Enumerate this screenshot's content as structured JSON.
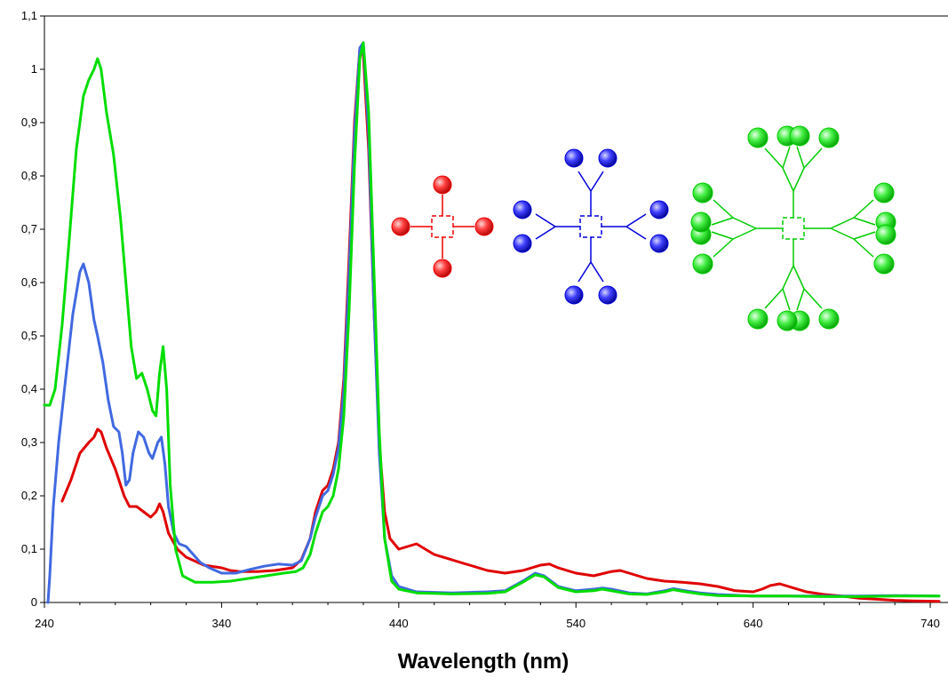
{
  "chart_data": {
    "type": "line",
    "title": "",
    "xlabel": "Wavelength (nm)",
    "ylabel": "",
    "xlim": [
      240,
      750
    ],
    "ylim": [
      0,
      1.1
    ],
    "x_ticks": [
      "240",
      "340",
      "440",
      "540",
      "640",
      "740"
    ],
    "y_ticks": [
      "0",
      "0,1",
      "0,2",
      "0,3",
      "0,4",
      "0,5",
      "0,6",
      "0,7",
      "0,8",
      "0,9",
      "1",
      "1,1"
    ],
    "grid": false,
    "legend": "none",
    "series": [
      {
        "color": "#e00000",
        "points": [
          [
            250,
            0.19
          ],
          [
            255,
            0.23
          ],
          [
            260,
            0.28
          ],
          [
            265,
            0.3
          ],
          [
            268,
            0.31
          ],
          [
            270,
            0.325
          ],
          [
            272,
            0.32
          ],
          [
            275,
            0.29
          ],
          [
            280,
            0.25
          ],
          [
            285,
            0.2
          ],
          [
            288,
            0.18
          ],
          [
            292,
            0.18
          ],
          [
            296,
            0.17
          ],
          [
            300,
            0.16
          ],
          [
            303,
            0.17
          ],
          [
            305,
            0.185
          ],
          [
            307,
            0.17
          ],
          [
            310,
            0.13
          ],
          [
            315,
            0.1
          ],
          [
            320,
            0.085
          ],
          [
            330,
            0.07
          ],
          [
            340,
            0.065
          ],
          [
            345,
            0.06
          ],
          [
            350,
            0.058
          ],
          [
            360,
            0.058
          ],
          [
            370,
            0.06
          ],
          [
            380,
            0.065
          ],
          [
            385,
            0.08
          ],
          [
            390,
            0.12
          ],
          [
            393,
            0.17
          ],
          [
            397,
            0.21
          ],
          [
            400,
            0.22
          ],
          [
            403,
            0.25
          ],
          [
            406,
            0.3
          ],
          [
            409,
            0.42
          ],
          [
            412,
            0.65
          ],
          [
            415,
            0.9
          ],
          [
            418,
            1.04
          ],
          [
            420,
            1.03
          ],
          [
            423,
            0.85
          ],
          [
            426,
            0.55
          ],
          [
            429,
            0.3
          ],
          [
            432,
            0.17
          ],
          [
            435,
            0.12
          ],
          [
            440,
            0.1
          ],
          [
            445,
            0.105
          ],
          [
            450,
            0.11
          ],
          [
            455,
            0.1
          ],
          [
            460,
            0.09
          ],
          [
            470,
            0.08
          ],
          [
            480,
            0.07
          ],
          [
            490,
            0.06
          ],
          [
            500,
            0.055
          ],
          [
            510,
            0.06
          ],
          [
            520,
            0.07
          ],
          [
            525,
            0.072
          ],
          [
            530,
            0.065
          ],
          [
            540,
            0.055
          ],
          [
            550,
            0.05
          ],
          [
            560,
            0.058
          ],
          [
            565,
            0.06
          ],
          [
            570,
            0.055
          ],
          [
            580,
            0.045
          ],
          [
            590,
            0.04
          ],
          [
            600,
            0.038
          ],
          [
            610,
            0.035
          ],
          [
            620,
            0.03
          ],
          [
            630,
            0.022
          ],
          [
            640,
            0.02
          ],
          [
            645,
            0.025
          ],
          [
            650,
            0.032
          ],
          [
            655,
            0.035
          ],
          [
            660,
            0.03
          ],
          [
            670,
            0.02
          ],
          [
            680,
            0.015
          ],
          [
            690,
            0.012
          ],
          [
            700,
            0.008
          ],
          [
            710,
            0.006
          ],
          [
            720,
            0.004
          ],
          [
            730,
            0.003
          ],
          [
            745,
            0.002
          ]
        ]
      },
      {
        "color": "#4169e1",
        "points": [
          [
            242,
            0.0
          ],
          [
            243,
            0.05
          ],
          [
            245,
            0.18
          ],
          [
            248,
            0.3
          ],
          [
            252,
            0.42
          ],
          [
            256,
            0.54
          ],
          [
            260,
            0.62
          ],
          [
            262,
            0.635
          ],
          [
            265,
            0.6
          ],
          [
            268,
            0.53
          ],
          [
            270,
            0.5
          ],
          [
            273,
            0.45
          ],
          [
            276,
            0.38
          ],
          [
            279,
            0.33
          ],
          [
            282,
            0.32
          ],
          [
            284,
            0.28
          ],
          [
            286,
            0.22
          ],
          [
            288,
            0.23
          ],
          [
            290,
            0.28
          ],
          [
            293,
            0.32
          ],
          [
            296,
            0.31
          ],
          [
            299,
            0.28
          ],
          [
            301,
            0.27
          ],
          [
            304,
            0.3
          ],
          [
            306,
            0.31
          ],
          [
            308,
            0.26
          ],
          [
            310,
            0.18
          ],
          [
            313,
            0.13
          ],
          [
            316,
            0.11
          ],
          [
            320,
            0.105
          ],
          [
            324,
            0.09
          ],
          [
            328,
            0.075
          ],
          [
            333,
            0.065
          ],
          [
            340,
            0.055
          ],
          [
            348,
            0.055
          ],
          [
            356,
            0.062
          ],
          [
            364,
            0.068
          ],
          [
            372,
            0.072
          ],
          [
            380,
            0.07
          ],
          [
            385,
            0.078
          ],
          [
            390,
            0.12
          ],
          [
            393,
            0.16
          ],
          [
            397,
            0.2
          ],
          [
            400,
            0.21
          ],
          [
            403,
            0.24
          ],
          [
            406,
            0.29
          ],
          [
            409,
            0.4
          ],
          [
            412,
            0.62
          ],
          [
            415,
            0.88
          ],
          [
            418,
            1.04
          ],
          [
            420,
            1.05
          ],
          [
            423,
            0.88
          ],
          [
            426,
            0.55
          ],
          [
            429,
            0.28
          ],
          [
            432,
            0.12
          ],
          [
            436,
            0.05
          ],
          [
            440,
            0.03
          ],
          [
            450,
            0.02
          ],
          [
            470,
            0.018
          ],
          [
            490,
            0.02
          ],
          [
            500,
            0.022
          ],
          [
            510,
            0.04
          ],
          [
            517,
            0.055
          ],
          [
            522,
            0.05
          ],
          [
            530,
            0.03
          ],
          [
            540,
            0.022
          ],
          [
            550,
            0.025
          ],
          [
            555,
            0.027
          ],
          [
            560,
            0.025
          ],
          [
            570,
            0.018
          ],
          [
            580,
            0.016
          ],
          [
            590,
            0.022
          ],
          [
            595,
            0.026
          ],
          [
            600,
            0.023
          ],
          [
            610,
            0.018
          ],
          [
            620,
            0.015
          ],
          [
            640,
            0.012
          ],
          [
            660,
            0.012
          ],
          [
            680,
            0.012
          ],
          [
            700,
            0.012
          ],
          [
            720,
            0.013
          ],
          [
            745,
            0.012
          ]
        ]
      },
      {
        "color": "#00dd00",
        "points": [
          [
            240,
            0.37
          ],
          [
            243,
            0.37
          ],
          [
            246,
            0.4
          ],
          [
            250,
            0.52
          ],
          [
            254,
            0.68
          ],
          [
            258,
            0.85
          ],
          [
            262,
            0.95
          ],
          [
            265,
            0.98
          ],
          [
            268,
            1.0
          ],
          [
            270,
            1.02
          ],
          [
            272,
            1.0
          ],
          [
            275,
            0.92
          ],
          [
            279,
            0.84
          ],
          [
            283,
            0.72
          ],
          [
            286,
            0.6
          ],
          [
            289,
            0.48
          ],
          [
            292,
            0.42
          ],
          [
            295,
            0.43
          ],
          [
            298,
            0.4
          ],
          [
            301,
            0.36
          ],
          [
            303,
            0.35
          ],
          [
            305,
            0.43
          ],
          [
            307,
            0.48
          ],
          [
            309,
            0.4
          ],
          [
            311,
            0.22
          ],
          [
            314,
            0.1
          ],
          [
            318,
            0.05
          ],
          [
            325,
            0.038
          ],
          [
            335,
            0.038
          ],
          [
            345,
            0.04
          ],
          [
            355,
            0.045
          ],
          [
            365,
            0.05
          ],
          [
            375,
            0.055
          ],
          [
            382,
            0.058
          ],
          [
            386,
            0.065
          ],
          [
            390,
            0.09
          ],
          [
            393,
            0.13
          ],
          [
            397,
            0.17
          ],
          [
            400,
            0.18
          ],
          [
            403,
            0.2
          ],
          [
            406,
            0.25
          ],
          [
            409,
            0.35
          ],
          [
            412,
            0.55
          ],
          [
            415,
            0.82
          ],
          [
            418,
            1.02
          ],
          [
            420,
            1.05
          ],
          [
            423,
            0.92
          ],
          [
            426,
            0.62
          ],
          [
            429,
            0.32
          ],
          [
            432,
            0.12
          ],
          [
            436,
            0.04
          ],
          [
            440,
            0.025
          ],
          [
            450,
            0.018
          ],
          [
            470,
            0.016
          ],
          [
            490,
            0.017
          ],
          [
            500,
            0.02
          ],
          [
            510,
            0.038
          ],
          [
            517,
            0.052
          ],
          [
            522,
            0.048
          ],
          [
            530,
            0.028
          ],
          [
            540,
            0.02
          ],
          [
            550,
            0.022
          ],
          [
            555,
            0.025
          ],
          [
            560,
            0.022
          ],
          [
            570,
            0.016
          ],
          [
            580,
            0.015
          ],
          [
            590,
            0.02
          ],
          [
            595,
            0.024
          ],
          [
            600,
            0.021
          ],
          [
            610,
            0.016
          ],
          [
            620,
            0.013
          ],
          [
            640,
            0.012
          ],
          [
            660,
            0.012
          ],
          [
            680,
            0.011
          ],
          [
            700,
            0.011
          ],
          [
            720,
            0.012
          ],
          [
            745,
            0.012
          ]
        ]
      }
    ]
  },
  "molecules": [
    {
      "color": "#ee0000",
      "generation": 0
    },
    {
      "color": "#0000dd",
      "generation": 1
    },
    {
      "color": "#00cc00",
      "generation": 2
    }
  ]
}
